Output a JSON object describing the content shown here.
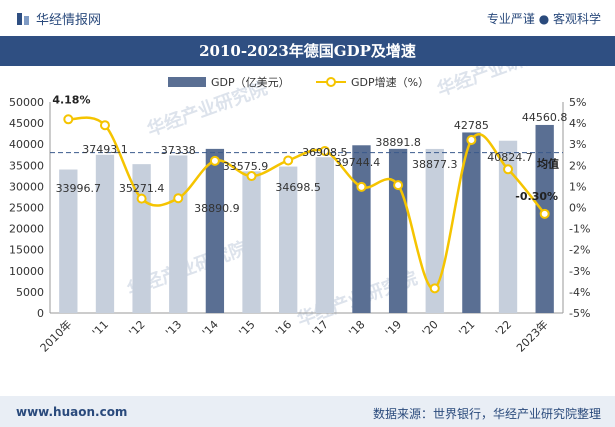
{
  "header": {
    "brand": "华经情报网",
    "tagline": "专业严谨 ● 客观科学"
  },
  "title": "2010-2023年德国GDP及增速",
  "footer": {
    "url": "www.huaon.com",
    "source": "数据来源：世界银行，华经产业研究院整理"
  },
  "watermark": "华经产业研究院",
  "colors": {
    "bar": "#c6cfdc",
    "bar_highlight": "#5a6f93",
    "line": "#f5c400",
    "marker_fill": "#ffffff",
    "avg_line": "#3a5a8c",
    "title_bg": "#2f4f82"
  },
  "chart_data": {
    "type": "bar",
    "categories": [
      "2010年",
      "'11",
      "'12",
      "'13",
      "'14",
      "'15",
      "'16",
      "'17",
      "'18",
      "'19",
      "'20",
      "'21",
      "'22",
      "2023年"
    ],
    "legend": [
      "GDP（亿美元）",
      "GDP增速（%）"
    ],
    "legend_placement": "top-center",
    "series": [
      {
        "name": "GDP（亿美元）",
        "type": "bar",
        "axis": "left",
        "values": [
          33996.7,
          37493.1,
          35271.4,
          37338,
          38890.9,
          33575.9,
          34698.5,
          36908.5,
          39744.4,
          38891.8,
          38877.3,
          42785,
          40824.7,
          44560.8
        ],
        "labels": [
          "33996.7",
          "37493.1",
          "35271.4",
          "37338",
          "38890.9",
          "33575.9",
          "34698.5",
          "36908.5",
          "39744.4",
          "38891.8",
          "38877.3",
          "42785",
          "40824.7",
          "44560.8"
        ]
      },
      {
        "name": "GDP增速（%）",
        "type": "line",
        "axis": "right",
        "values": [
          4.18,
          3.9,
          0.42,
          0.44,
          2.21,
          1.49,
          2.23,
          2.68,
          0.98,
          1.06,
          -3.83,
          3.2,
          1.81,
          -0.3
        ],
        "labels": [
          "4.18%",
          "",
          "",
          "",
          "",
          "",
          "",
          "",
          "",
          "",
          "",
          "",
          "",
          "-0.30%"
        ]
      }
    ],
    "average": {
      "label": "均值",
      "value": 38000
    },
    "y_left": {
      "min": 0,
      "max": 50000,
      "ticks": [
        0,
        5000,
        10000,
        15000,
        20000,
        25000,
        30000,
        35000,
        40000,
        45000,
        50000
      ]
    },
    "y_right": {
      "min": -5,
      "max": 5,
      "ticks": [
        "-5%",
        "-4%",
        "-3%",
        "-2%",
        "-1%",
        "0%",
        "1%",
        "2%",
        "3%",
        "4%",
        "5%"
      ]
    },
    "grid": false
  }
}
